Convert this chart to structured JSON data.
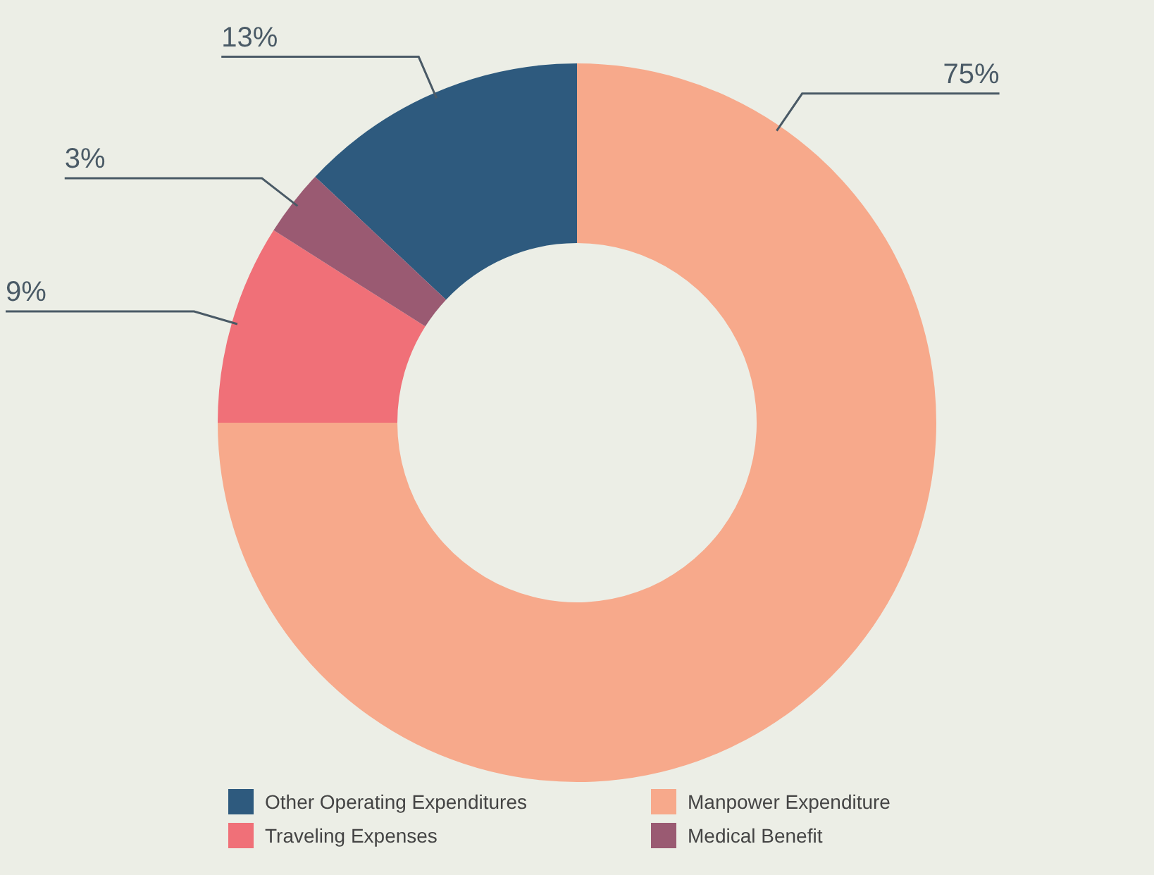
{
  "chart_data": {
    "type": "donut",
    "categories": [
      "Other Operating Expenditures",
      "Manpower Expenditure",
      "Traveling Expenses",
      "Medical Benefit"
    ],
    "values": [
      13,
      75,
      9,
      3
    ],
    "colors": [
      "#2e5a7e",
      "#f7a98b",
      "#f07078",
      "#9a5a72"
    ],
    "value_labels": [
      "13%",
      "75%",
      "9%",
      "3%"
    ],
    "legend": "bottom"
  }
}
